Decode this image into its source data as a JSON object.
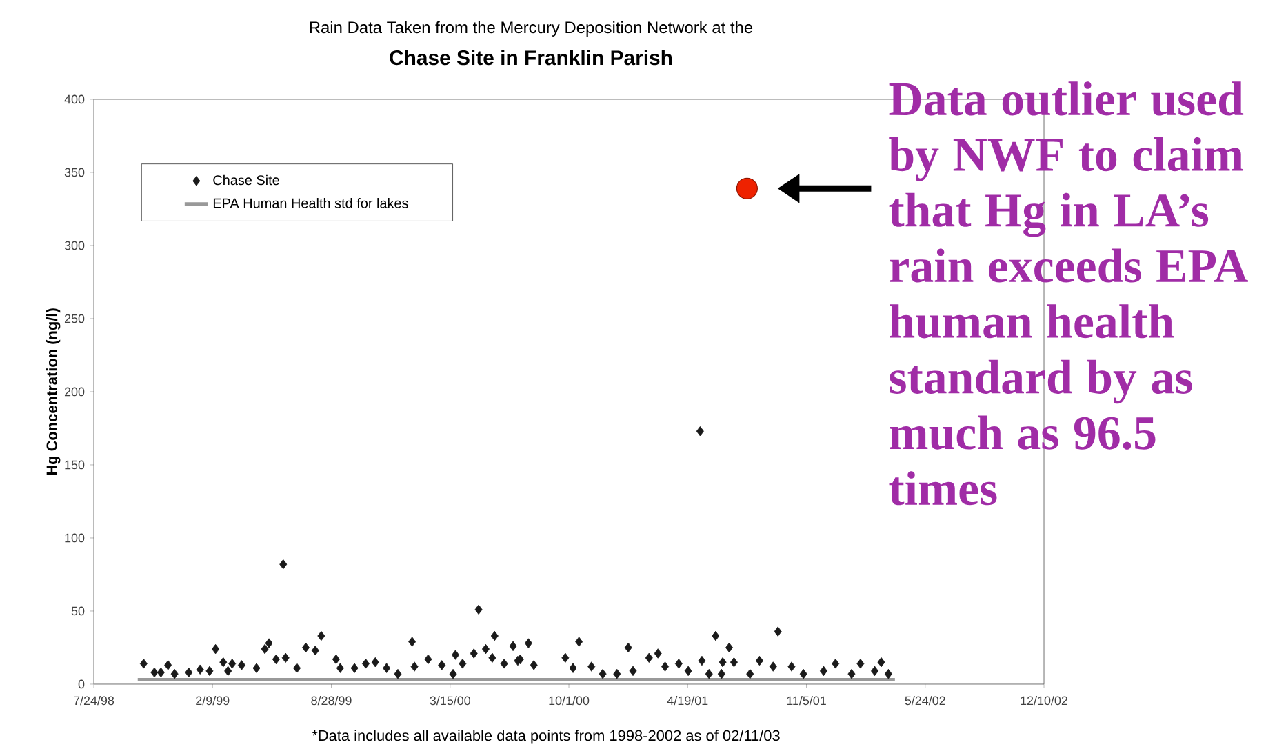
{
  "chart_data": {
    "type": "scatter",
    "title": "Rain Data Taken from the Mercury Deposition Network at the",
    "subtitle": "Chase Site in Franklin Parish",
    "ylabel": "Hg Concentration (ng/l)",
    "xlim": [
      "1998-07-24",
      "2002-12-10"
    ],
    "xticks": [
      {
        "value": "1998-07-24",
        "label": "7/24/98"
      },
      {
        "value": "1999-02-09",
        "label": "2/9/99"
      },
      {
        "value": "1999-08-28",
        "label": "8/28/99"
      },
      {
        "value": "2000-03-15",
        "label": "3/15/00"
      },
      {
        "value": "2000-10-01",
        "label": "10/1/00"
      },
      {
        "value": "2001-04-19",
        "label": "4/19/01"
      },
      {
        "value": "2001-11-05",
        "label": "11/5/01"
      },
      {
        "value": "2002-05-24",
        "label": "5/24/02"
      },
      {
        "value": "2002-12-10",
        "label": "12/10/02"
      }
    ],
    "ylim": [
      0,
      400
    ],
    "yticks": [
      0,
      50,
      100,
      150,
      200,
      250,
      300,
      350,
      400
    ],
    "legend": "top left",
    "series": [
      {
        "name": "Chase Site",
        "marker": "diamond",
        "color": "#1a1a1a",
        "x": [
          "1998-10-16",
          "1998-11-03",
          "1998-11-14",
          "1998-11-26",
          "1998-12-07",
          "1998-12-31",
          "1999-01-19",
          "1999-02-04",
          "1999-02-14",
          "1999-02-27",
          "1999-03-07",
          "1999-03-14",
          "1999-03-30",
          "1999-04-24",
          "1999-05-08",
          "1999-05-15",
          "1999-05-27",
          "1999-06-08",
          "1999-06-12",
          "1999-07-01",
          "1999-07-16",
          "1999-08-01",
          "1999-08-11",
          "1999-09-05",
          "1999-09-12",
          "1999-10-06",
          "1999-10-25",
          "1999-11-10",
          "1999-11-29",
          "1999-12-18",
          "2000-01-11",
          "2000-01-15",
          "2000-02-07",
          "2000-03-01",
          "2000-03-20",
          "2000-03-24",
          "2000-04-05",
          "2000-04-24",
          "2000-05-02",
          "2000-05-14",
          "2000-05-25",
          "2000-05-29",
          "2000-06-14",
          "2000-06-29",
          "2000-07-07",
          "2000-07-11",
          "2000-07-25",
          "2000-08-03",
          "2000-09-25",
          "2000-10-08",
          "2000-10-18",
          "2000-11-08",
          "2000-11-27",
          "2000-12-21",
          "2001-01-09",
          "2001-01-17",
          "2001-02-13",
          "2001-02-28",
          "2001-03-12",
          "2001-04-04",
          "2001-04-20",
          "2001-05-10",
          "2001-05-13",
          "2001-05-25",
          "2001-06-05",
          "2001-06-15",
          "2001-06-17",
          "2001-06-28",
          "2001-07-06",
          "2001-08-02",
          "2001-08-18",
          "2001-09-10",
          "2001-09-18",
          "2001-10-11",
          "2001-10-31",
          "2001-12-04",
          "2001-12-24",
          "2002-01-20",
          "2002-02-04",
          "2002-02-28",
          "2002-03-11",
          "2002-03-23"
        ],
        "values": [
          14,
          8,
          8,
          13,
          7,
          8,
          10,
          9,
          24,
          15,
          9,
          14,
          13,
          11,
          24,
          28,
          17,
          82,
          18,
          11,
          25,
          23,
          33,
          17,
          11,
          11,
          14,
          15,
          11,
          7,
          29,
          12,
          17,
          13,
          7,
          20,
          14,
          21,
          51,
          24,
          18,
          33,
          14,
          26,
          16,
          17,
          28,
          13,
          18,
          11,
          29,
          12,
          7,
          7,
          25,
          9,
          18,
          21,
          12,
          14,
          9,
          173,
          16,
          7,
          33,
          7,
          15,
          25,
          15,
          7,
          16,
          12,
          36,
          12,
          7,
          9,
          14,
          7,
          14,
          9,
          15,
          7
        ]
      },
      {
        "name": "EPA Human Health std for lakes",
        "type": "line",
        "color": "#999999",
        "x": [
          "1998-10-06",
          "2002-04-03"
        ],
        "values": [
          3,
          3
        ]
      },
      {
        "marker": "circle",
        "color": "#ee2200",
        "x": [
          "2001-07-28"
        ],
        "values": [
          339
        ]
      }
    ],
    "annotations": [
      "Data outlier used by NWF to claim that Hg in LA’s rain exceeds EPA human health standard by as much as 96.5 times",
      "*Data includes all available data points from  1998-2002 as of 02/11/03"
    ]
  }
}
